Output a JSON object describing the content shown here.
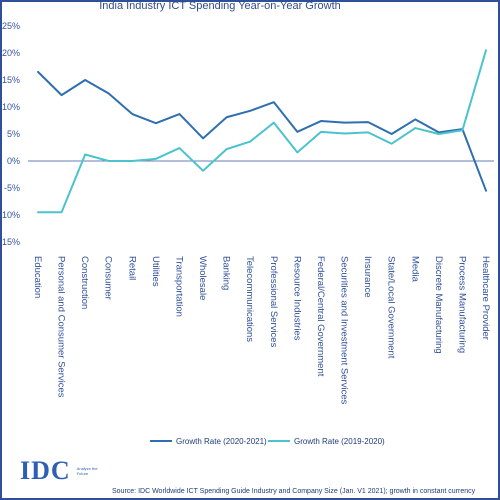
{
  "chart_data": {
    "type": "line",
    "title": "India Industry ICT Spending Year-on-Year Growth",
    "categories": [
      "Education",
      "Personal and Consumer Services",
      "Construction",
      "Consumer",
      "Retail",
      "Utilities",
      "Transportation",
      "Wholesale",
      "Banking",
      "Telecommunications",
      "Professional Services",
      "Resource Industries",
      "Federal/Central Government",
      "Securities and Investment Services",
      "Insurance",
      "State/Local Government",
      "Media",
      "Discrete Manufacturing",
      "Process Manufacturing",
      "Healthcare Provider"
    ],
    "series": [
      {
        "name": "Growth Rate (2020-2021)",
        "color": "#2e6fb0",
        "values": [
          16.5,
          12.2,
          15.0,
          12.5,
          8.7,
          7.0,
          8.7,
          4.2,
          8.1,
          9.3,
          10.9,
          5.4,
          7.4,
          7.1,
          7.2,
          5.0,
          7.7,
          5.3,
          5.9,
          -5.5
        ]
      },
      {
        "name": "Growth Rate (2019-2020)",
        "color": "#4cc3cc",
        "values": [
          -9.5,
          -9.5,
          1.2,
          0.0,
          0.0,
          0.4,
          2.4,
          -1.8,
          2.2,
          3.6,
          7.1,
          1.6,
          5.4,
          5.1,
          5.3,
          3.2,
          6.1,
          5.0,
          5.7,
          20.5
        ]
      }
    ],
    "y_ticks": [
      "25%",
      "20%",
      "15%",
      "10%",
      "5%",
      "0%",
      "-5%",
      "-10%",
      "-15%"
    ],
    "ylim": [
      -15,
      25
    ],
    "legend_position": "bottom",
    "grid": false
  },
  "source_text": "Source: IDC Worldwide ICT Spending Guide Industry and Company Size (Jan. V1 2021); growth in constant currency",
  "logo": {
    "mark": "IDC",
    "tagline": "Analyze the Future"
  },
  "colors": {
    "frame": "#2f4f98",
    "axis": "#3353a3"
  }
}
